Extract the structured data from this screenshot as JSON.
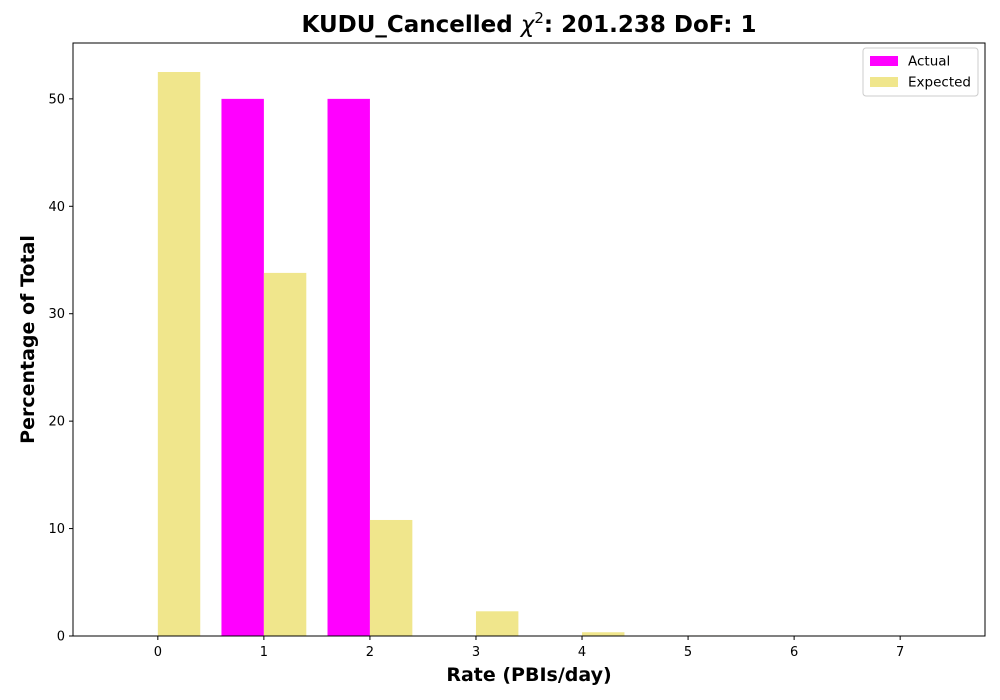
{
  "chart_data": {
    "type": "bar",
    "title_prefix": "KUDU_Cancelled ",
    "title_symbol": "χ",
    "title_superscript": "2",
    "title_suffix": ": 201.238 DoF: 1",
    "xlabel": "Rate (PBIs/day)",
    "ylabel": "Percentage of Total",
    "categories": [
      "0",
      "1",
      "2",
      "3",
      "4",
      "5",
      "6",
      "7"
    ],
    "x": [
      0,
      1,
      2,
      3,
      4,
      5,
      6,
      7
    ],
    "series": [
      {
        "name": "Actual",
        "color": "#ff00ff",
        "values": [
          0,
          50,
          50,
          0,
          0,
          0,
          0,
          0
        ]
      },
      {
        "name": "Expected",
        "color": "#f0e68c",
        "values": [
          52.5,
          33.8,
          10.8,
          2.3,
          0.35,
          0.05,
          0,
          0
        ]
      }
    ],
    "xlim": [
      -0.8,
      7.8
    ],
    "ylim": [
      0,
      55.2
    ],
    "yticks": [
      0,
      10,
      20,
      30,
      40,
      50
    ],
    "grid": false,
    "legend_position": "top-right"
  }
}
